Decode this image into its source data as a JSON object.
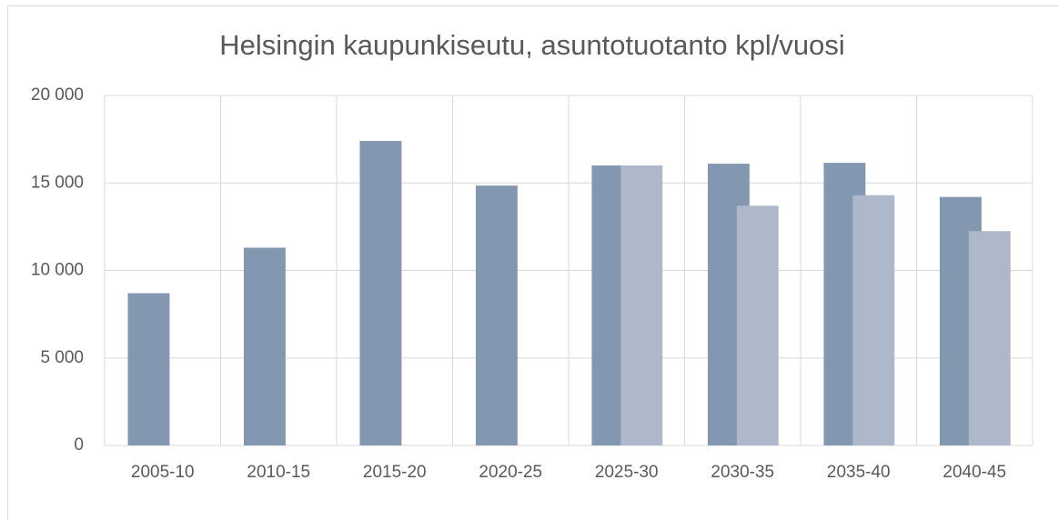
{
  "chart_data": {
    "type": "bar",
    "title": "Helsingin kaupunkiseutu, asuntotuotanto kpl/vuosi",
    "categories": [
      "2005-10",
      "2010-15",
      "2015-20",
      "2020-25",
      "2025-30",
      "2030-35",
      "2035-40",
      "2040-45"
    ],
    "series": [
      {
        "color": "#8497b0",
        "values": [
          8700,
          11300,
          17400,
          14850,
          16000,
          16100,
          16150,
          14200
        ]
      },
      {
        "color": "#adb9ca",
        "values": [
          null,
          null,
          null,
          null,
          16000,
          13700,
          14300,
          12250
        ]
      }
    ],
    "ylim": [
      0,
      20000
    ],
    "yticks": [
      0,
      {
        "value": 5000,
        "label": "5 000"
      },
      {
        "value": 10000,
        "label": "10 000"
      },
      {
        "value": 15000,
        "label": "15 000"
      },
      {
        "value": 20000,
        "label": "20 000"
      }
    ],
    "grid": true
  }
}
